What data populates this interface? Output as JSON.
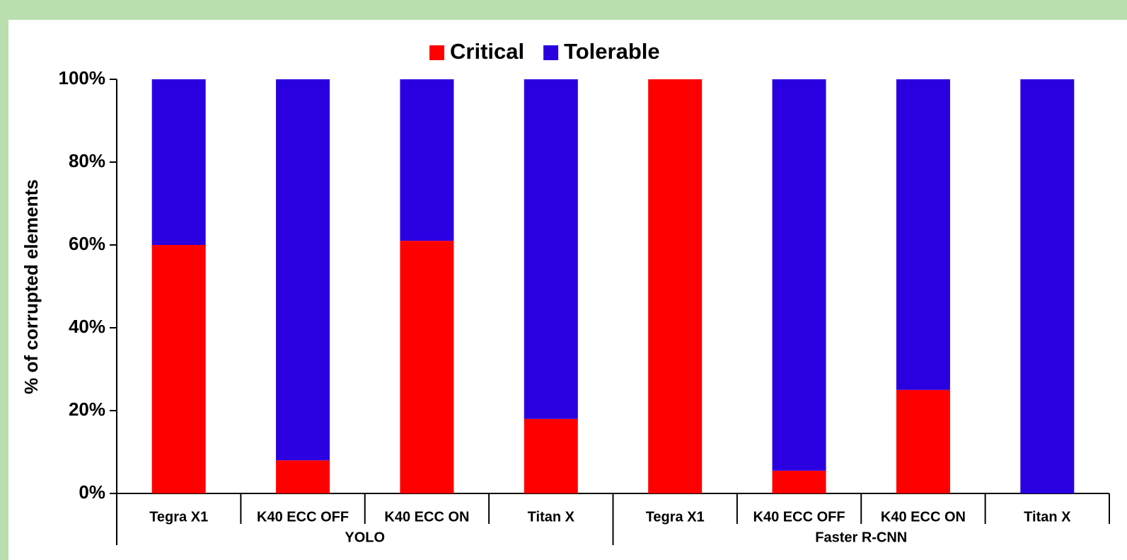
{
  "chart_data": {
    "type": "stacked_bar",
    "y_label": "% of corrupted elements",
    "categories": [
      "Tegra X1",
      "K40 ECC OFF",
      "K40 ECC ON",
      "Titan X",
      "Tegra X1",
      "K40 ECC OFF",
      "K40 ECC ON",
      "Titan X"
    ],
    "groups": [
      "YOLO",
      "Faster R-CNN"
    ],
    "series": [
      {
        "name": "Critical",
        "color": "#ff0000",
        "values": [
          60,
          8,
          61,
          18,
          100,
          5.5,
          25,
          0
        ]
      },
      {
        "name": "Tolerable",
        "color": "#2b00e0",
        "values": [
          40,
          92,
          39,
          82,
          0,
          94.5,
          75,
          100
        ]
      }
    ],
    "ylim": [
      0,
      100
    ],
    "yticks": [
      {
        "value": 0,
        "label": "0%"
      },
      {
        "value": 20,
        "label": "20%"
      },
      {
        "value": 40,
        "label": "40%"
      },
      {
        "value": 60,
        "label": "60%"
      },
      {
        "value": 80,
        "label": "80%"
      },
      {
        "value": 100,
        "label": "100%"
      }
    ],
    "legend": "top",
    "grid": false
  }
}
